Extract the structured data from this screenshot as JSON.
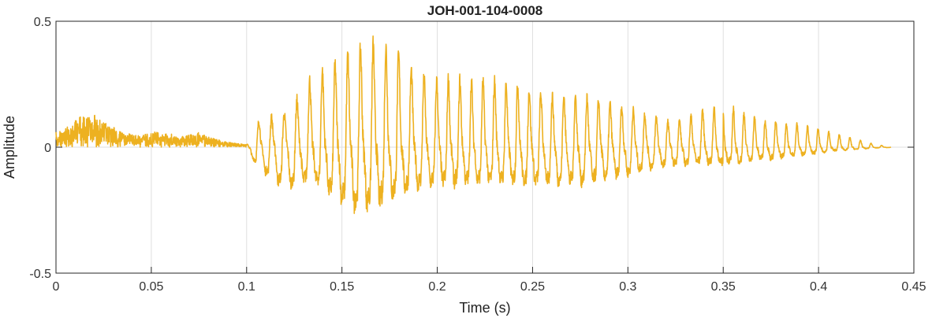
{
  "chart_data": {
    "type": "line",
    "title": "JOH-001-104-0008",
    "xlabel": "Time (s)",
    "ylabel": "Amplitude",
    "xlim": [
      0,
      0.45
    ],
    "ylim": [
      -0.5,
      0.5
    ],
    "x_ticks": [
      0,
      0.05,
      0.1,
      0.15,
      0.2,
      0.25,
      0.3,
      0.35,
      0.4,
      0.45
    ],
    "x_tick_labels": [
      "0",
      "0.05",
      "0.1",
      "0.15",
      "0.2",
      "0.25",
      "0.3",
      "0.35",
      "0.4",
      "0.45"
    ],
    "y_ticks": [
      -0.5,
      0,
      0.5
    ],
    "y_tick_labels": [
      "-0.5",
      "0",
      "0.5"
    ],
    "grid": true,
    "series": [
      {
        "color": "#EDB120",
        "signal_end_s": 0.438,
        "envelope": {
          "t": [
            0,
            0.005,
            0.01,
            0.015,
            0.02,
            0.025,
            0.03,
            0.035,
            0.04,
            0.045,
            0.05,
            0.055,
            0.06,
            0.065,
            0.07,
            0.075,
            0.08,
            0.085,
            0.09,
            0.095,
            0.1,
            0.105,
            0.11,
            0.115,
            0.12,
            0.125,
            0.13,
            0.135,
            0.14,
            0.145,
            0.15,
            0.155,
            0.16,
            0.165,
            0.17,
            0.175,
            0.18,
            0.185,
            0.19,
            0.195,
            0.2,
            0.205,
            0.21,
            0.215,
            0.22,
            0.225,
            0.23,
            0.235,
            0.24,
            0.245,
            0.25,
            0.255,
            0.26,
            0.265,
            0.27,
            0.275,
            0.28,
            0.285,
            0.29,
            0.295,
            0.3,
            0.305,
            0.31,
            0.315,
            0.32,
            0.325,
            0.33,
            0.335,
            0.34,
            0.345,
            0.35,
            0.355,
            0.36,
            0.365,
            0.37,
            0.375,
            0.38,
            0.385,
            0.39,
            0.395,
            0.4,
            0.405,
            0.41,
            0.415,
            0.42,
            0.425,
            0.43,
            0.435,
            0.438
          ],
          "upper": [
            0.05,
            0.07,
            0.1,
            0.08,
            0.13,
            0.09,
            0.07,
            0.06,
            0.05,
            0.04,
            0.04,
            0.05,
            0.06,
            0.04,
            0.05,
            0.06,
            0.04,
            0.03,
            0.02,
            0.015,
            0.01,
            0.1,
            0.11,
            0.12,
            0.13,
            0.17,
            0.22,
            0.29,
            0.3,
            0.32,
            0.34,
            0.37,
            0.39,
            0.4,
            0.4,
            0.39,
            0.36,
            0.31,
            0.28,
            0.27,
            0.26,
            0.27,
            0.27,
            0.26,
            0.26,
            0.26,
            0.26,
            0.25,
            0.25,
            0.24,
            0.22,
            0.21,
            0.2,
            0.2,
            0.2,
            0.2,
            0.19,
            0.18,
            0.17,
            0.16,
            0.15,
            0.14,
            0.13,
            0.12,
            0.1,
            0.1,
            0.11,
            0.13,
            0.15,
            0.15,
            0.16,
            0.15,
            0.14,
            0.12,
            0.11,
            0.1,
            0.1,
            0.09,
            0.09,
            0.08,
            0.07,
            0.06,
            0.05,
            0.04,
            0.03,
            0.02,
            0.01,
            0.005,
            0.002
          ],
          "lower": [
            -0.06,
            -0.08,
            -0.12,
            -0.12,
            -0.13,
            -0.1,
            -0.08,
            -0.06,
            -0.05,
            -0.05,
            -0.06,
            -0.06,
            -0.05,
            -0.04,
            -0.05,
            -0.05,
            -0.04,
            -0.03,
            -0.02,
            -0.015,
            -0.01,
            -0.12,
            -0.18,
            -0.24,
            -0.27,
            -0.27,
            -0.24,
            -0.23,
            -0.27,
            -0.33,
            -0.37,
            -0.4,
            -0.41,
            -0.4,
            -0.38,
            -0.35,
            -0.31,
            -0.28,
            -0.27,
            -0.26,
            -0.25,
            -0.25,
            -0.25,
            -0.25,
            -0.24,
            -0.24,
            -0.24,
            -0.24,
            -0.24,
            -0.25,
            -0.25,
            -0.25,
            -0.25,
            -0.25,
            -0.25,
            -0.25,
            -0.24,
            -0.23,
            -0.21,
            -0.2,
            -0.19,
            -0.17,
            -0.15,
            -0.14,
            -0.13,
            -0.12,
            -0.12,
            -0.11,
            -0.11,
            -0.12,
            -0.12,
            -0.11,
            -0.1,
            -0.09,
            -0.08,
            -0.08,
            -0.07,
            -0.06,
            -0.05,
            -0.05,
            -0.04,
            -0.03,
            -0.02,
            -0.02,
            -0.015,
            -0.01,
            -0.005,
            -0.003,
            -0.002
          ]
        }
      }
    ]
  }
}
